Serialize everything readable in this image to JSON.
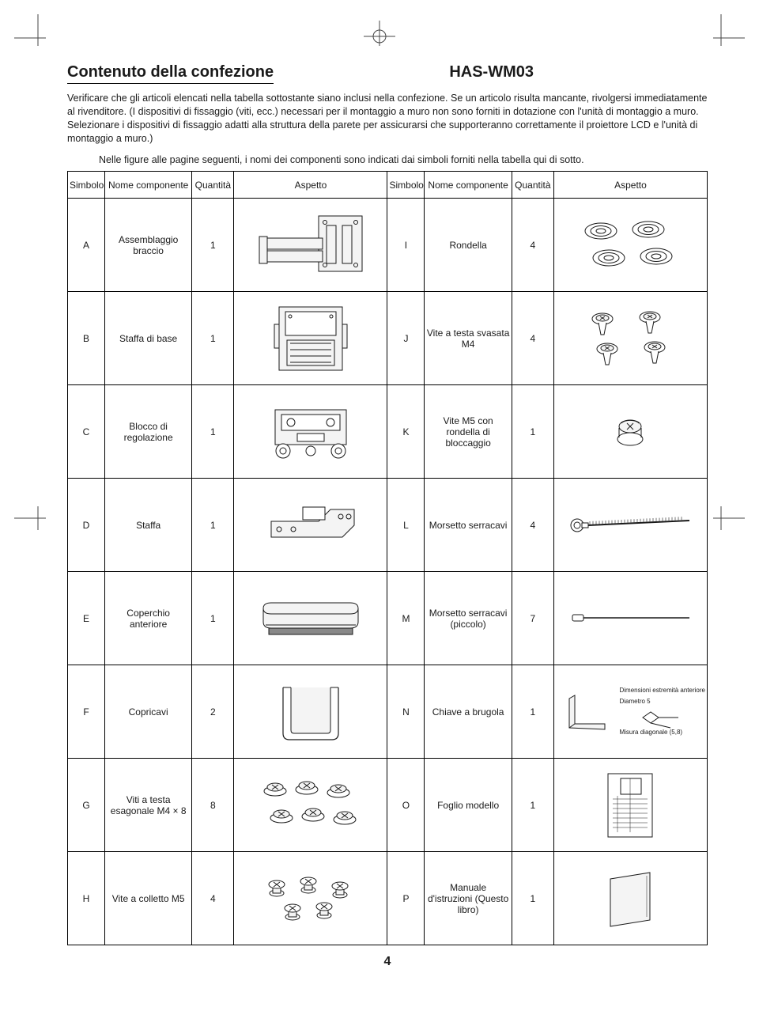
{
  "model": "HAS-WM03",
  "title": "Contenuto della confezione",
  "intro": "Verificare che gli articoli elencati nella tabella sottostante siano inclusi nella confezione. Se un articolo risulta mancante, rivolgersi immediatamente al rivenditore. (I dispositivi di fissaggio (viti, ecc.) necessari per il montaggio a muro non sono forniti in dotazione con l'unità di montaggio a muro. Selezionare i dispositivi di fissaggio adatti alla struttura della parete per assicurarsi che supporteranno correttamente il proiettore LCD e l'unità di montaggio a muro.)",
  "note": "Nelle figure alle pagine seguenti, i nomi dei componenti sono indicati dai simboli forniti nella tabella qui di sotto.",
  "headers": {
    "symbol": "Simbolo",
    "name": "Nome componente",
    "qty": "Quantità",
    "aspect": "Aspetto"
  },
  "rows": [
    {
      "l": {
        "sym": "A",
        "name": "Assemblaggio braccio",
        "qty": "1"
      },
      "r": {
        "sym": "I",
        "name": "Rondella",
        "qty": "4"
      }
    },
    {
      "l": {
        "sym": "B",
        "name": "Staffa di base",
        "qty": "1"
      },
      "r": {
        "sym": "J",
        "name": "Vite a testa svasata M4",
        "qty": "4"
      }
    },
    {
      "l": {
        "sym": "C",
        "name": "Blocco di regolazione",
        "qty": "1"
      },
      "r": {
        "sym": "K",
        "name": "Vite M5 con rondella di bloccaggio",
        "qty": "1"
      }
    },
    {
      "l": {
        "sym": "D",
        "name": "Staffa",
        "qty": "1"
      },
      "r": {
        "sym": "L",
        "name": "Morsetto serracavi",
        "qty": "4"
      }
    },
    {
      "l": {
        "sym": "E",
        "name": "Coperchio anteriore",
        "qty": "1"
      },
      "r": {
        "sym": "M",
        "name": "Morsetto serracavi (piccolo)",
        "qty": "7"
      }
    },
    {
      "l": {
        "sym": "F",
        "name": "Copricavi",
        "qty": "2"
      },
      "r": {
        "sym": "N",
        "name": "Chiave a brugola",
        "qty": "1"
      }
    },
    {
      "l": {
        "sym": "G",
        "name": "Viti a testa esagonale M4 × 8",
        "qty": "8"
      },
      "r": {
        "sym": "O",
        "name": "Foglio modello",
        "qty": "1"
      }
    },
    {
      "l": {
        "sym": "H",
        "name": "Vite a colletto M5",
        "qty": "4"
      },
      "r": {
        "sym": "P",
        "name": "Manuale d'istruzioni (Questo libro)",
        "qty": "1"
      }
    }
  ],
  "hexkey_labels": {
    "front": "Dimensioni estremità anteriore",
    "dia": "Diametro 5",
    "diag": "Misura diagonale (5,8)"
  },
  "page_number": "4",
  "colors": {
    "line": "#1a1a1a",
    "bg": "#ffffff",
    "fillLight": "#f4f4f4"
  }
}
